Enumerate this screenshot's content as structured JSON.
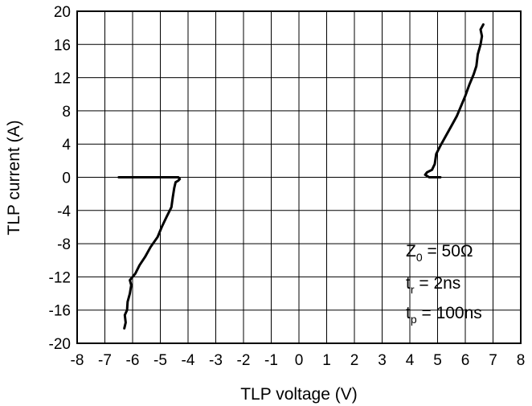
{
  "chart_data": {
    "type": "line",
    "title": "",
    "xlabel": "TLP voltage (V)",
    "ylabel": "TLP current (A)",
    "xlim": [
      -8,
      8
    ],
    "ylim": [
      -20,
      20
    ],
    "xticks": [
      "-8",
      "-7",
      "-6",
      "-5",
      "-4",
      "-3",
      "-2",
      "-1",
      "0",
      "1",
      "2",
      "3",
      "4",
      "5",
      "6",
      "7",
      "8"
    ],
    "yticks": [
      "20",
      "16",
      "12",
      "8",
      "4",
      "0",
      "-4",
      "-8",
      "-12",
      "-16",
      "-20"
    ],
    "grid": true,
    "legend": "none",
    "line_color": "#000000",
    "annotation": {
      "z0_main": "Z",
      "z0_sub": "0",
      "z0_rest": " = 50Ω",
      "tr_main": "t",
      "tr_sub": "r",
      "tr_rest": " = 2ns",
      "tp_main": "t",
      "tp_sub": "p",
      "tp_rest": " = 100ns"
    },
    "series": [
      {
        "name": "",
        "points": [
          [
            -6.3,
            -18.2
          ],
          [
            -6.25,
            -17.5
          ],
          [
            -6.28,
            -16.6
          ],
          [
            -6.2,
            -16.0
          ],
          [
            -6.18,
            -15.0
          ],
          [
            -6.1,
            -14.0
          ],
          [
            -6.05,
            -13.0
          ],
          [
            -6.1,
            -12.4
          ],
          [
            -5.9,
            -11.6
          ],
          [
            -5.75,
            -10.6
          ],
          [
            -5.55,
            -9.6
          ],
          [
            -5.35,
            -8.4
          ],
          [
            -5.1,
            -7.2
          ],
          [
            -4.95,
            -6.0
          ],
          [
            -4.78,
            -4.8
          ],
          [
            -4.6,
            -3.6
          ],
          [
            -4.55,
            -2.4
          ],
          [
            -4.5,
            -1.3
          ],
          [
            -4.45,
            -0.6
          ],
          [
            -4.35,
            -0.4
          ],
          [
            -4.3,
            -0.2
          ],
          [
            -4.35,
            0.0
          ],
          [
            -4.6,
            0.0
          ],
          [
            -5.5,
            0.0
          ],
          [
            -6.5,
            0.0
          ]
        ]
      },
      {
        "name": "",
        "points": [
          [
            5.1,
            0.0
          ],
          [
            4.7,
            0.0
          ],
          [
            4.55,
            0.3
          ],
          [
            4.62,
            0.6
          ],
          [
            4.8,
            0.9
          ],
          [
            4.9,
            1.6
          ],
          [
            4.95,
            2.8
          ],
          [
            5.1,
            3.8
          ],
          [
            5.3,
            5.0
          ],
          [
            5.5,
            6.2
          ],
          [
            5.7,
            7.4
          ],
          [
            5.85,
            8.6
          ],
          [
            6.0,
            9.8
          ],
          [
            6.15,
            11.2
          ],
          [
            6.3,
            12.4
          ],
          [
            6.4,
            13.4
          ],
          [
            6.45,
            14.8
          ],
          [
            6.55,
            16.0
          ],
          [
            6.6,
            17.0
          ],
          [
            6.55,
            17.8
          ],
          [
            6.65,
            18.4
          ]
        ]
      }
    ]
  }
}
